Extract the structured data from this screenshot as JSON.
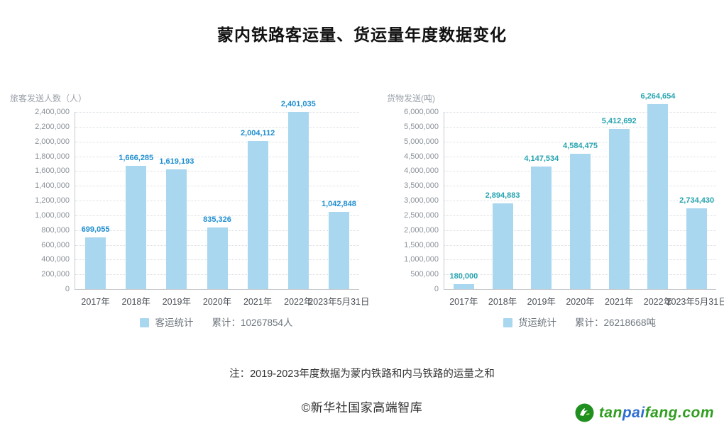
{
  "page": {
    "title": "蒙内铁路客运量、货运量年度数据变化",
    "note": "注：2019-2023年度数据为蒙内铁路和内马铁路的运量之和",
    "copyright": "©新华社国家高端智库"
  },
  "logo": {
    "icon": "tanpaifang-leaf-icon",
    "text_part1": "tan",
    "text_part2": "pai",
    "text_part3": "fang.com",
    "green": "#2f9e1f",
    "blue": "#2e6dd2",
    "icon_color": "#1f8f1f"
  },
  "colors": {
    "bar_fill": "#a9d7f0",
    "passenger_value_label": "#1e8ed0",
    "freight_value_label": "#27a4b0",
    "gridline": "#d9dde1",
    "axis_line": "#c6cacf",
    "tick_text": "#8b9299",
    "category_text": "#4a4f55",
    "unit_text": "#9aa1a8",
    "legend_text": "#6e767e"
  },
  "chart_data": [
    {
      "type": "bar",
      "title": "客运统计",
      "unit_label": "旅客发送人数（人）",
      "categories": [
        "2017年",
        "2018年",
        "2019年",
        "2020年",
        "2021年",
        "2022年",
        "2023年5月31日"
      ],
      "values": [
        699055,
        1666285,
        1619193,
        835326,
        2004112,
        2401035,
        1042848
      ],
      "value_labels": [
        "699,055",
        "1,666,285",
        "1,619,193",
        "835,326",
        "2,004,112",
        "2,401,035",
        "1,042,848"
      ],
      "ylim": [
        0,
        2400000
      ],
      "ytick_step": 200000,
      "grid": true,
      "legend_position": "bottom",
      "value_label_color": "#1e8ed0",
      "legend": {
        "series": "客运统计",
        "cumulative": "累计：10267854人"
      }
    },
    {
      "type": "bar",
      "title": "货运统计",
      "unit_label": "货物发送(吨)",
      "categories": [
        "2017年",
        "2018年",
        "2019年",
        "2020年",
        "2021年",
        "2022年",
        "2023年5月31日"
      ],
      "values": [
        180000,
        2894883,
        4147534,
        4584475,
        5412692,
        6264654,
        2734430
      ],
      "value_labels": [
        "180,000",
        "2,894,883",
        "4,147,534",
        "4,584,475",
        "5,412,692",
        "6,264,654",
        "2,734,430"
      ],
      "ylim": [
        0,
        6000000
      ],
      "ytick_step": 500000,
      "grid": true,
      "legend_position": "bottom",
      "value_label_color": "#27a4b0",
      "legend": {
        "series": "货运统计",
        "cumulative": "累计：26218668吨"
      }
    }
  ]
}
